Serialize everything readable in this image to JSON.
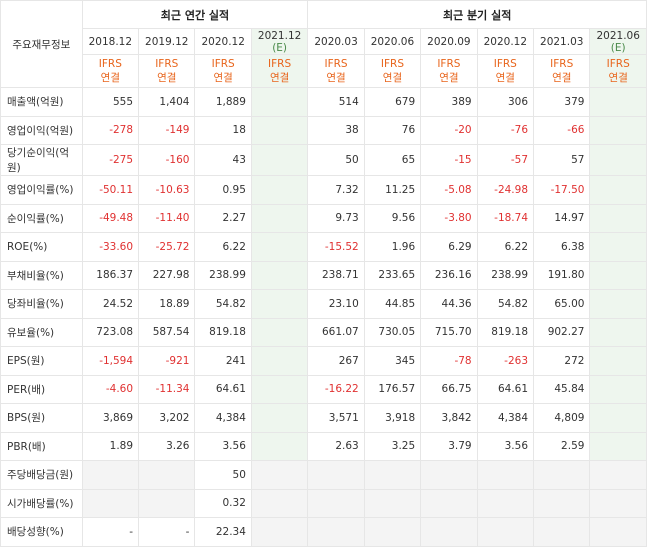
{
  "header": {
    "corner_label": "주요재무정보",
    "annual_title": "최근 연간 실적",
    "quarter_title": "최근 분기 실적",
    "periods": [
      "2018.12",
      "2019.12",
      "2020.12",
      "2021.12 (E)",
      "2020.03",
      "2020.06",
      "2020.09",
      "2020.12",
      "2021.03",
      "2021.06 (E)"
    ],
    "ifrs_line1": "IFRS",
    "ifrs_line2": "연결"
  },
  "rows": [
    {
      "label": "매출액(억원)",
      "values": [
        "555",
        "1,404",
        "1,889",
        "",
        "514",
        "679",
        "389",
        "306",
        "379",
        ""
      ]
    },
    {
      "label": "영업이익(억원)",
      "values": [
        "-278",
        "-149",
        "18",
        "",
        "38",
        "76",
        "-20",
        "-76",
        "-66",
        ""
      ]
    },
    {
      "label": "당기순이익(억원)",
      "values": [
        "-275",
        "-160",
        "43",
        "",
        "50",
        "65",
        "-15",
        "-57",
        "57",
        ""
      ]
    },
    {
      "label": "영업이익률(%)",
      "values": [
        "-50.11",
        "-10.63",
        "0.95",
        "",
        "7.32",
        "11.25",
        "-5.08",
        "-24.98",
        "-17.50",
        ""
      ]
    },
    {
      "label": "순이익률(%)",
      "values": [
        "-49.48",
        "-11.40",
        "2.27",
        "",
        "9.73",
        "9.56",
        "-3.80",
        "-18.74",
        "14.97",
        ""
      ]
    },
    {
      "label": "ROE(%)",
      "values": [
        "-33.60",
        "-25.72",
        "6.22",
        "",
        "-15.52",
        "1.96",
        "6.29",
        "6.22",
        "6.38",
        ""
      ]
    },
    {
      "label": "부채비율(%)",
      "values": [
        "186.37",
        "227.98",
        "238.99",
        "",
        "238.71",
        "233.65",
        "236.16",
        "238.99",
        "191.80",
        ""
      ]
    },
    {
      "label": "당좌비율(%)",
      "values": [
        "24.52",
        "18.89",
        "54.82",
        "",
        "23.10",
        "44.85",
        "44.36",
        "54.82",
        "65.00",
        ""
      ]
    },
    {
      "label": "유보율(%)",
      "values": [
        "723.08",
        "587.54",
        "819.18",
        "",
        "661.07",
        "730.05",
        "715.70",
        "819.18",
        "902.27",
        ""
      ]
    },
    {
      "label": "EPS(원)",
      "values": [
        "-1,594",
        "-921",
        "241",
        "",
        "267",
        "345",
        "-78",
        "-263",
        "272",
        ""
      ]
    },
    {
      "label": "PER(배)",
      "values": [
        "-4.60",
        "-11.34",
        "64.61",
        "",
        "-16.22",
        "176.57",
        "66.75",
        "64.61",
        "45.84",
        ""
      ]
    },
    {
      "label": "BPS(원)",
      "values": [
        "3,869",
        "3,202",
        "4,384",
        "",
        "3,571",
        "3,918",
        "3,842",
        "4,384",
        "4,809",
        ""
      ]
    },
    {
      "label": "PBR(배)",
      "values": [
        "1.89",
        "3.26",
        "3.56",
        "",
        "2.63",
        "3.25",
        "3.79",
        "3.56",
        "2.59",
        ""
      ]
    },
    {
      "label": "주당배당금(원)",
      "values": [
        "",
        "",
        "50",
        "",
        "",
        "",
        "",
        "",
        "",
        ""
      ]
    },
    {
      "label": "시가배당률(%)",
      "values": [
        "",
        "",
        "0.32",
        "",
        "",
        "",
        "",
        "",
        "",
        ""
      ]
    },
    {
      "label": "배당성향(%)",
      "values": [
        "-",
        "-",
        "22.34",
        "",
        "",
        "",
        "",
        "",
        "",
        ""
      ]
    }
  ],
  "colors": {
    "negative": "#e03131",
    "ifrs": "#e8641b",
    "estimate_bg": "#eef6ee",
    "estimate_text": "#4a8a4a"
  }
}
